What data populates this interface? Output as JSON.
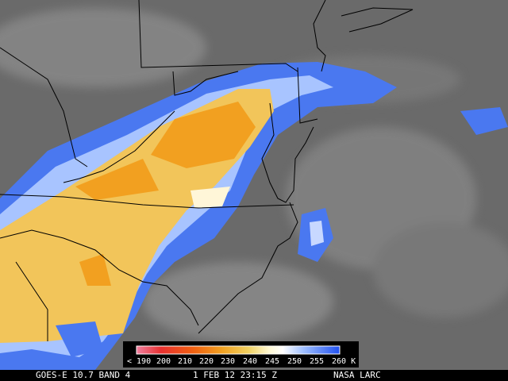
{
  "colorbar": {
    "labels": [
      "< 190",
      "200",
      "210",
      "220",
      "230",
      "240",
      "245",
      "250",
      "255",
      "260 K"
    ]
  },
  "caption": {
    "product": "GOES-E 10.7 BAND 4",
    "datetime": "1 FEB 12 23:15 Z",
    "source": "NASA LARC"
  }
}
